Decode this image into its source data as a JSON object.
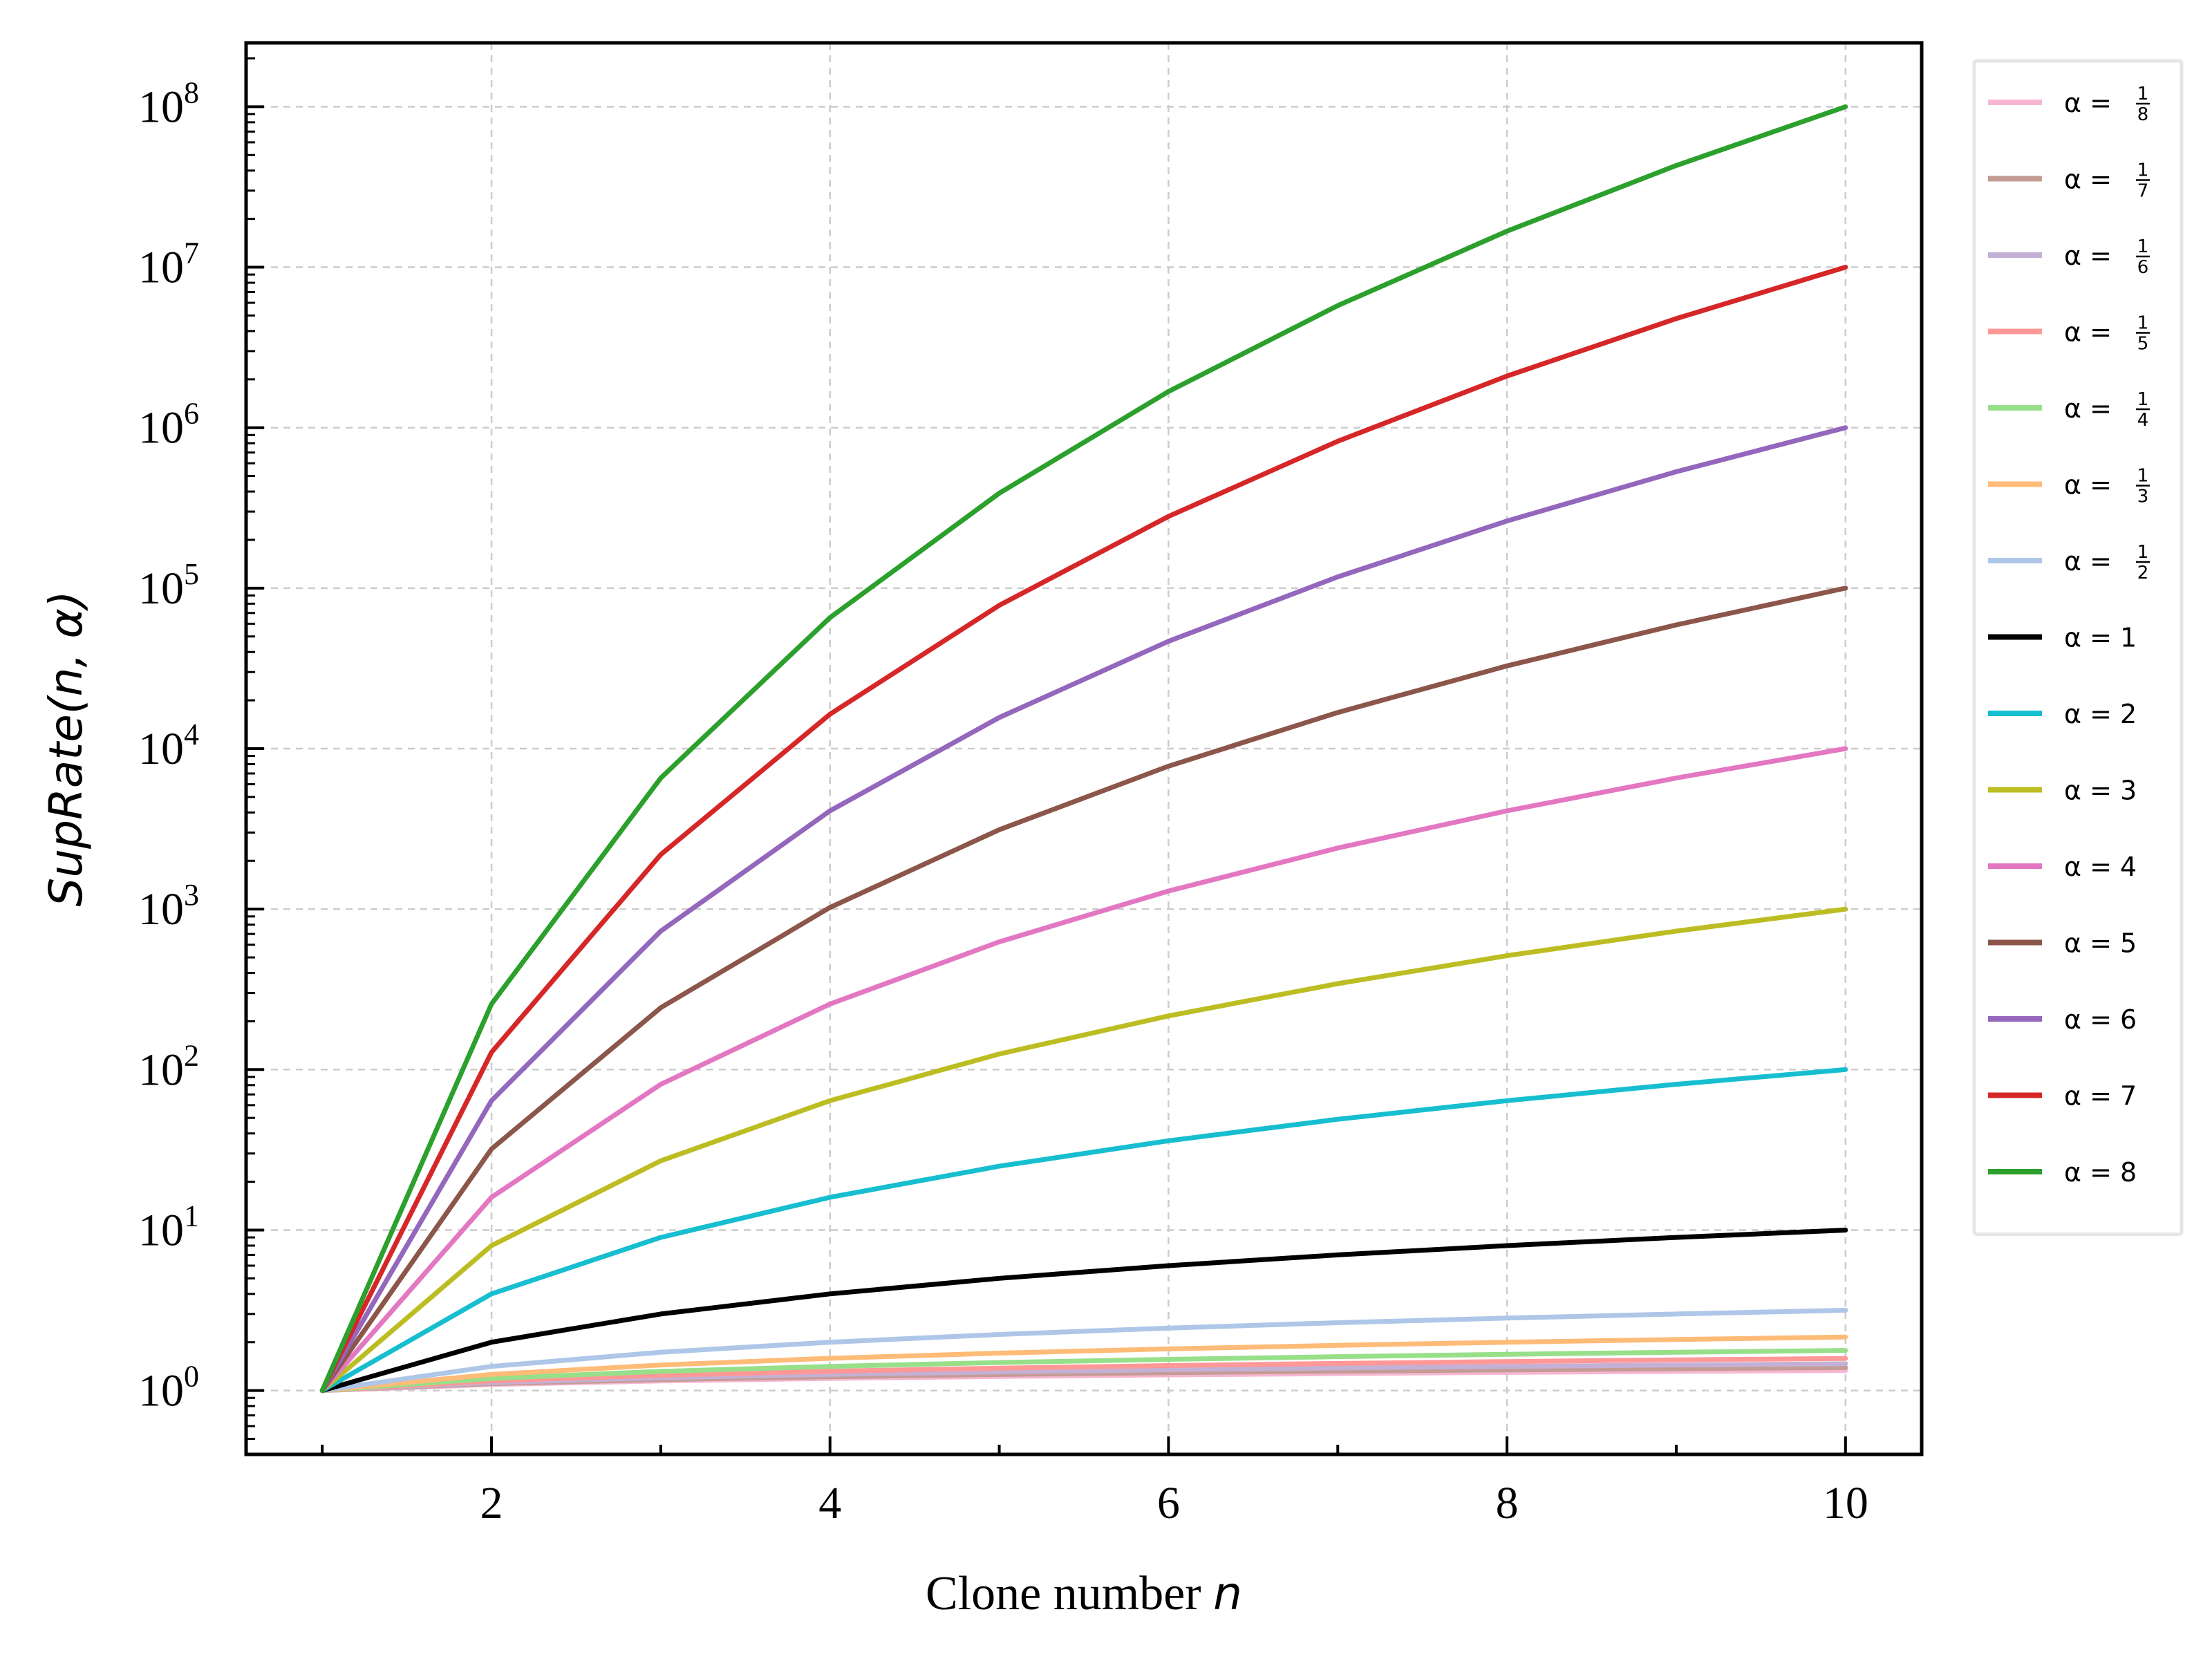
{
  "chart_data": {
    "type": "line",
    "xlabel": "Clone number n",
    "ylabel": "SupRate(n, α)",
    "xlim": [
      0.55,
      10.45
    ],
    "ylim": [
      0.4,
      250000000
    ],
    "yscale": "log",
    "x_ticks": [
      2,
      4,
      6,
      8,
      10
    ],
    "x_tick_labels": [
      "2",
      "4",
      "6",
      "8",
      "10"
    ],
    "y_ticks": [
      1,
      10,
      100,
      1000,
      10000,
      100000,
      1000000,
      10000000,
      100000000
    ],
    "y_tick_base": "10",
    "y_tick_exponents": [
      "0",
      "1",
      "2",
      "3",
      "4",
      "5",
      "6",
      "7",
      "8"
    ],
    "grid": true,
    "legend_position": "outside-right",
    "x": [
      1,
      2,
      3,
      4,
      5,
      6,
      7,
      8,
      9,
      10
    ],
    "series": [
      {
        "name": "α = 1/8",
        "alpha": 0.125,
        "color": "#f7b6d2",
        "values": [
          1,
          1.0905,
          1.1472,
          1.1892,
          1.2228,
          1.251,
          1.2754,
          1.2968,
          1.3161,
          1.3335
        ]
      },
      {
        "name": "α = 1/7",
        "alpha": 0.142857,
        "color": "#c49c94",
        "values": [
          1,
          1.1041,
          1.1699,
          1.219,
          1.2585,
          1.2917,
          1.3205,
          1.3459,
          1.3687,
          1.3895
        ]
      },
      {
        "name": "α = 1/6",
        "alpha": 0.166667,
        "color": "#c5b0d5",
        "values": [
          1,
          1.1225,
          1.2009,
          1.2599,
          1.3077,
          1.348,
          1.3831,
          1.4142,
          1.4422,
          1.4678
        ]
      },
      {
        "name": "α = 1/5",
        "alpha": 0.2,
        "color": "#ff9896",
        "values": [
          1,
          1.1487,
          1.2457,
          1.3195,
          1.3797,
          1.431,
          1.4758,
          1.5157,
          1.5518,
          1.5849
        ]
      },
      {
        "name": "α = 1/4",
        "alpha": 0.25,
        "color": "#98df8a",
        "values": [
          1,
          1.1892,
          1.3161,
          1.4142,
          1.4953,
          1.5651,
          1.6266,
          1.6818,
          1.7321,
          1.7783
        ]
      },
      {
        "name": "α = 1/3",
        "alpha": 0.333333,
        "color": "#ffbb78",
        "values": [
          1,
          1.2599,
          1.4422,
          1.5874,
          1.71,
          1.8171,
          1.9129,
          2.0,
          2.0801,
          2.1544
        ]
      },
      {
        "name": "α = 1/2",
        "alpha": 0.5,
        "color": "#aec7e8",
        "values": [
          1,
          1.4142,
          1.7321,
          2.0,
          2.2361,
          2.4495,
          2.6458,
          2.8284,
          3.0,
          3.1623
        ]
      },
      {
        "name": "α = 1",
        "alpha": 1,
        "color": "#000000",
        "values": [
          1,
          2,
          3,
          4,
          5,
          6,
          7,
          8,
          9,
          10
        ]
      },
      {
        "name": "α = 2",
        "alpha": 2,
        "color": "#17becf",
        "values": [
          1,
          4,
          9,
          16,
          25,
          36,
          49,
          64,
          81,
          100
        ]
      },
      {
        "name": "α = 3",
        "alpha": 3,
        "color": "#bcbd22",
        "values": [
          1,
          8,
          27,
          64,
          125,
          216,
          343,
          512,
          729,
          1000
        ]
      },
      {
        "name": "α = 4",
        "alpha": 4,
        "color": "#e377c2",
        "values": [
          1,
          16,
          81,
          256,
          625,
          1296,
          2401,
          4096,
          6561,
          10000
        ]
      },
      {
        "name": "α = 5",
        "alpha": 5,
        "color": "#8c564b",
        "values": [
          1,
          32,
          243,
          1024,
          3125,
          7776,
          16807,
          32768,
          59049,
          100000
        ]
      },
      {
        "name": "α = 6",
        "alpha": 6,
        "color": "#9467bd",
        "values": [
          1,
          64,
          729,
          4096,
          15625,
          46656,
          117649,
          262144,
          531441,
          1000000
        ]
      },
      {
        "name": "α = 7",
        "alpha": 7,
        "color": "#d62728",
        "values": [
          1,
          128,
          2187,
          16384,
          78125,
          279936,
          823543,
          2097152,
          4782969,
          10000000
        ]
      },
      {
        "name": "α = 8",
        "alpha": 8,
        "color": "#2ca02c",
        "values": [
          1,
          256,
          6561,
          65536,
          390625,
          1679616,
          5764801,
          16777216,
          43046721,
          100000000
        ]
      }
    ],
    "legend": [
      {
        "prefix": "α =",
        "num": "1",
        "den": "8"
      },
      {
        "prefix": "α =",
        "num": "1",
        "den": "7"
      },
      {
        "prefix": "α =",
        "num": "1",
        "den": "6"
      },
      {
        "prefix": "α =",
        "num": "1",
        "den": "5"
      },
      {
        "prefix": "α =",
        "num": "1",
        "den": "4"
      },
      {
        "prefix": "α =",
        "num": "1",
        "den": "3"
      },
      {
        "prefix": "α =",
        "num": "1",
        "den": "2"
      },
      {
        "prefix": "α = 1"
      },
      {
        "prefix": "α = 2"
      },
      {
        "prefix": "α = 3"
      },
      {
        "prefix": "α = 4"
      },
      {
        "prefix": "α = 5"
      },
      {
        "prefix": "α = 6"
      },
      {
        "prefix": "α = 7"
      },
      {
        "prefix": "α = 8"
      }
    ]
  },
  "labels": {
    "xlabel_text": "Clone number ",
    "xlabel_var": "n",
    "ylabel_text": "SupRate(n, α)"
  }
}
